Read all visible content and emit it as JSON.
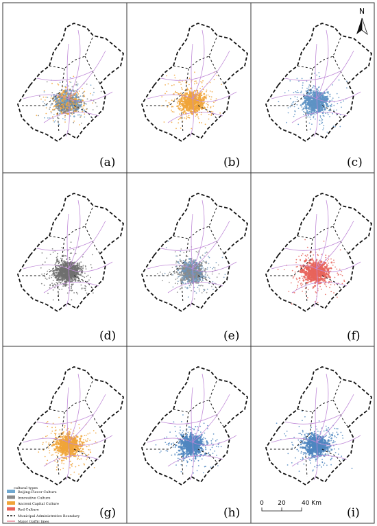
{
  "panels": [
    {
      "label": "(a)",
      "colors": [
        "#808080",
        "#6a9cc6",
        "#f0a43a"
      ]
    },
    {
      "label": "(b)",
      "colors": [
        "#f0a43a"
      ]
    },
    {
      "label": "(c)",
      "colors": [
        "#5e93c4"
      ]
    },
    {
      "label": "(d)",
      "colors": [
        "#707070"
      ]
    },
    {
      "label": "(e)",
      "colors": [
        "#6f94b8",
        "#8a8a8a"
      ]
    },
    {
      "label": "(f)",
      "colors": [
        "#e8645a"
      ]
    },
    {
      "label": "(g)",
      "colors": [
        "#f0a43a"
      ]
    },
    {
      "label": "(h)",
      "colors": [
        "#4f86c0"
      ]
    },
    {
      "label": "(i)",
      "colors": [
        "#4f86c0"
      ]
    }
  ],
  "north": "N",
  "legend": {
    "title": "cultural types",
    "items": [
      {
        "label": "Beijing-Flavor Culture",
        "color": "#6fa8d0"
      },
      {
        "label": "Innovative Culture",
        "color": "#8a8a8a"
      },
      {
        "label": "Ancient Capital Culture",
        "color": "#f0a43a"
      },
      {
        "label": "Red Culture",
        "color": "#e8645a"
      }
    ],
    "boundary": "Municipal Administrative Boundary",
    "traffic": "Major traffic lines"
  },
  "scale_bar": {
    "labels": [
      "0",
      "20",
      "40 Km"
    ]
  }
}
